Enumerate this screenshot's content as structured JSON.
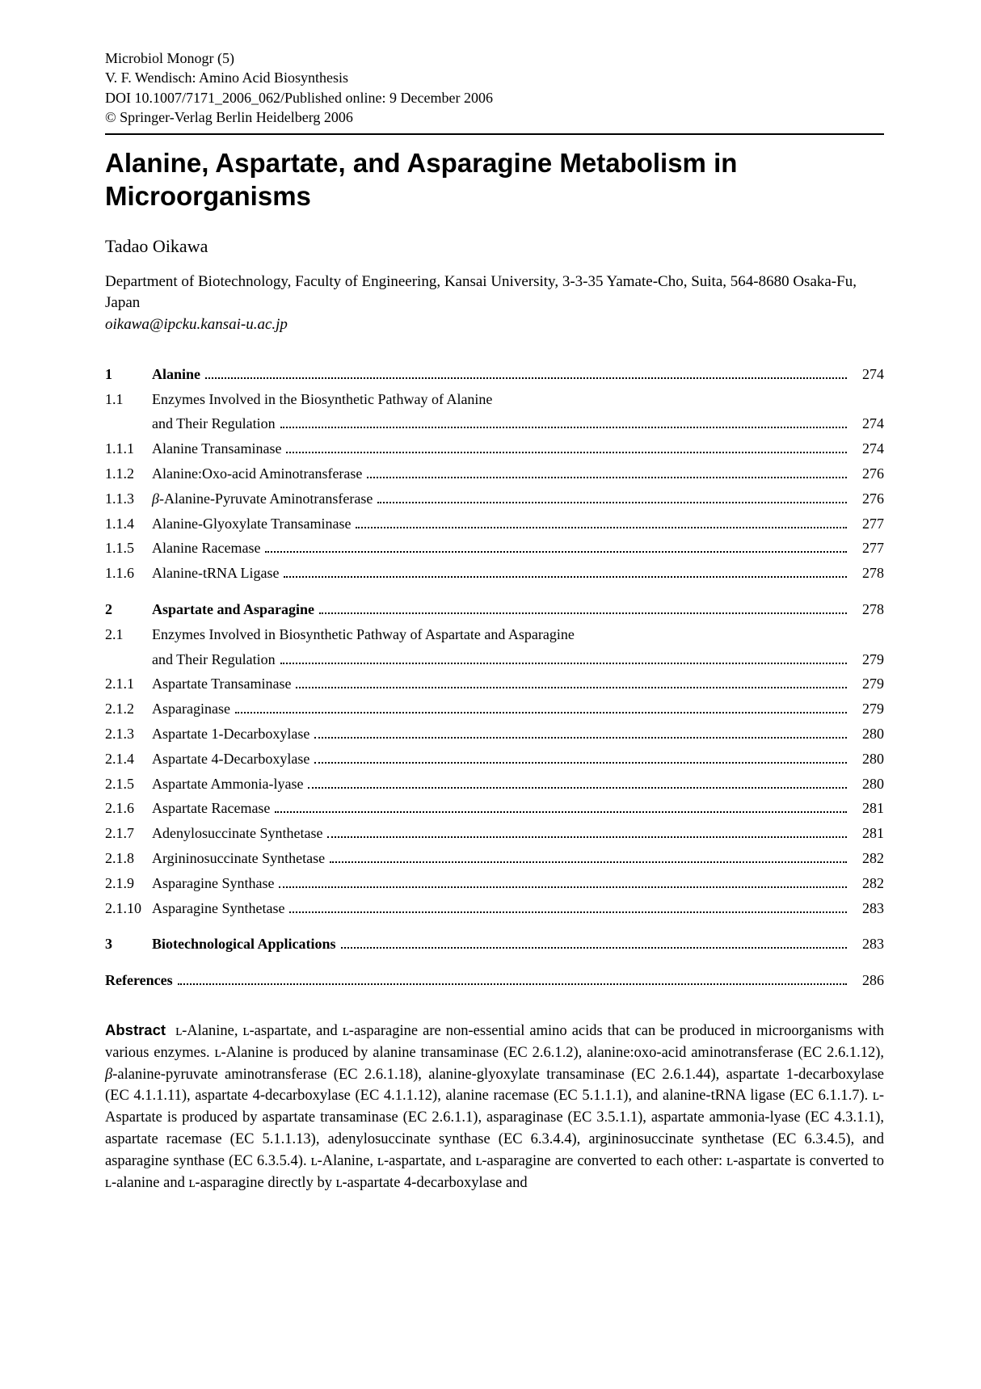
{
  "header": {
    "series": "Microbiol Monogr (5)",
    "editor_line": "V. F. Wendisch: Amino Acid Biosynthesis",
    "doi_line": "DOI 10.1007/7171_2006_062/Published online: 9 December 2006",
    "copyright": "© Springer-Verlag Berlin Heidelberg 2006"
  },
  "title": "Alanine, Aspartate, and Asparagine Metabolism in Microorganisms",
  "author": "Tadao Oikawa",
  "affiliation": "Department of Biotechnology, Faculty of Engineering, Kansai University, 3-3-35 Yamate-Cho, Suita, 564-8680 Osaka-Fu, Japan",
  "email": "oikawa@ipcku.kansai-u.ac.jp",
  "toc": [
    {
      "num": "1",
      "label": "Alanine",
      "page": "274",
      "bold": true
    },
    {
      "num": "1.1",
      "label": "Enzymes Involved in the Biosynthetic Pathway of Alanine and Their Regulation",
      "page": "274",
      "wrap": true
    },
    {
      "num": "1.1.1",
      "label": "Alanine Transaminase",
      "page": "274"
    },
    {
      "num": "1.1.2",
      "label": "Alanine:Oxo-acid Aminotransferase",
      "page": "276"
    },
    {
      "num": "1.1.3",
      "label": "β-Alanine-Pyruvate Aminotransferase",
      "page": "276",
      "beta": true
    },
    {
      "num": "1.1.4",
      "label": "Alanine-Glyoxylate Transaminase",
      "page": "277"
    },
    {
      "num": "1.1.5",
      "label": "Alanine Racemase",
      "page": "277"
    },
    {
      "num": "1.1.6",
      "label": "Alanine-tRNA Ligase",
      "page": "278"
    },
    {
      "gap": true
    },
    {
      "num": "2",
      "label": "Aspartate and Asparagine",
      "page": "278",
      "bold": true
    },
    {
      "num": "2.1",
      "label": "Enzymes Involved in Biosynthetic Pathway of Aspartate and Asparagine and Their Regulation",
      "page": "279",
      "wrap": true
    },
    {
      "num": "2.1.1",
      "label": "Aspartate Transaminase",
      "page": "279"
    },
    {
      "num": "2.1.2",
      "label": "Asparaginase",
      "page": "279"
    },
    {
      "num": "2.1.3",
      "label": "Aspartate 1-Decarboxylase",
      "page": "280"
    },
    {
      "num": "2.1.4",
      "label": "Aspartate 4-Decarboxylase",
      "page": "280"
    },
    {
      "num": "2.1.5",
      "label": "Aspartate Ammonia-lyase",
      "page": "280"
    },
    {
      "num": "2.1.6",
      "label": "Aspartate Racemase",
      "page": "281"
    },
    {
      "num": "2.1.7",
      "label": "Adenylosuccinate Synthetase",
      "page": "281"
    },
    {
      "num": "2.1.8",
      "label": "Argininosuccinate Synthetase",
      "page": "282"
    },
    {
      "num": "2.1.9",
      "label": "Asparagine Synthase",
      "page": "282"
    },
    {
      "num": "2.1.10",
      "label": "Asparagine Synthetase",
      "page": "283"
    },
    {
      "gap": true
    },
    {
      "num": "3",
      "label": "Biotechnological Applications",
      "page": "283",
      "bold": true
    },
    {
      "gap": true
    },
    {
      "num": "",
      "label": "References",
      "page": "286",
      "bold": true,
      "refs": true
    }
  ],
  "abstract_label": "Abstract",
  "abstract_html": "ʟ-Alanine, ʟ-aspartate, and ʟ-asparagine are non-essential amino acids that can be produced in microorganisms with various enzymes. ʟ-Alanine is produced by alanine transaminase (EC 2.6.1.2), alanine:oxo-acid aminotransferase (EC 2.6.1.12), <span class=\"beta\">β</span>-alanine-pyruvate aminotransferase (EC 2.6.1.18), alanine-glyoxylate transaminase (EC 2.6.1.44), aspartate 1-decarboxylase (EC 4.1.1.11), aspartate 4-decarboxylase (EC 4.1.1.12), alanine racemase (EC 5.1.1.1), and alanine-tRNA ligase (EC 6.1.1.7). ʟ-Aspartate is produced by aspartate transaminase (EC 2.6.1.1), asparaginase (EC 3.5.1.1), aspartate ammonia-lyase (EC 4.3.1.1), aspartate racemase (EC 5.1.1.13), adenylosuccinate synthase (EC 6.3.4.4), argininosuccinate synthetase (EC 6.3.4.5), and asparagine synthase (EC 6.3.5.4). ʟ-Alanine, ʟ-aspartate, and ʟ-asparagine are converted to each other: ʟ-aspartate is converted to ʟ-alanine and ʟ-asparagine directly by ʟ-aspartate 4-decarboxylase and"
}
